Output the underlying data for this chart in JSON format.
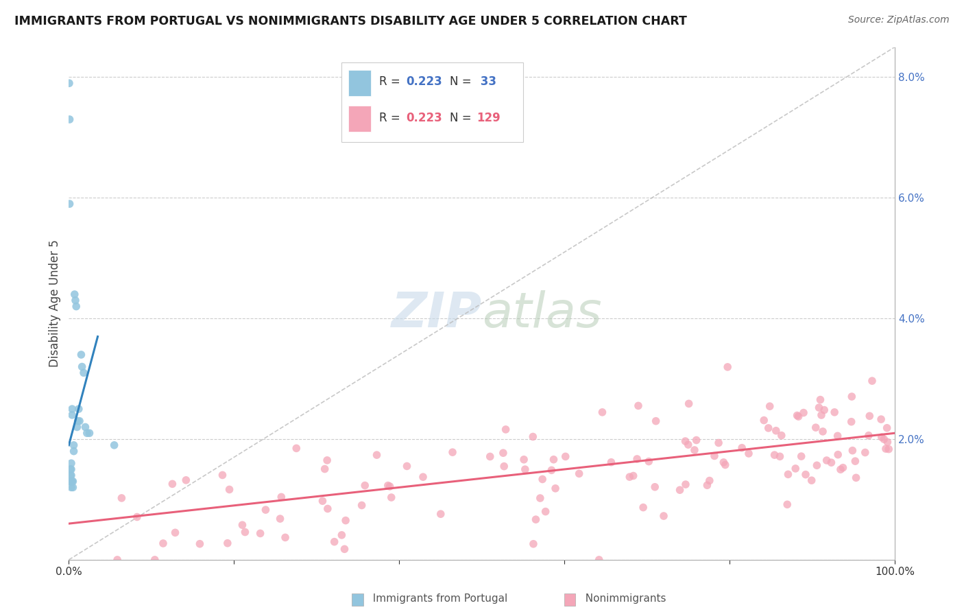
{
  "title": "IMMIGRANTS FROM PORTUGAL VS NONIMMIGRANTS DISABILITY AGE UNDER 5 CORRELATION CHART",
  "source": "Source: ZipAtlas.com",
  "ylabel": "Disability Age Under 5",
  "x_min": 0,
  "x_max": 1.0,
  "y_min": 0,
  "y_max": 0.085,
  "y_ticks_right": [
    0.0,
    0.02,
    0.04,
    0.06,
    0.08
  ],
  "y_tick_labels_right": [
    "",
    "2.0%",
    "4.0%",
    "6.0%",
    "8.0%"
  ],
  "blue_color": "#92c5de",
  "pink_color": "#f4a6b8",
  "blue_line_color": "#3182bd",
  "pink_line_color": "#e8607a",
  "legend_r_color_blue": "#4472c4",
  "legend_r_color_pink": "#e8607a",
  "watermark_color": "#c8daea",
  "grid_color": "#cccccc",
  "title_color": "#1a1a1a",
  "source_color": "#666666",
  "ylabel_color": "#444444",
  "tick_color_right": "#4472c4"
}
